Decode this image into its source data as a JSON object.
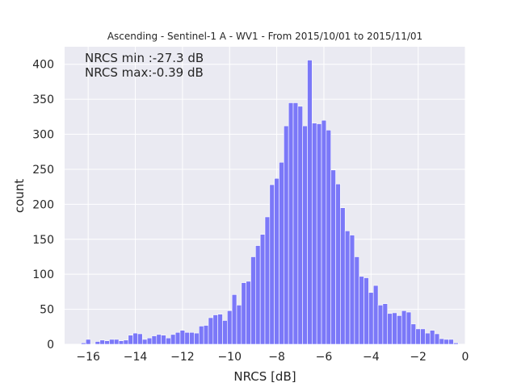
{
  "chart_data": {
    "type": "bar",
    "title": "Ascending - Sentinel-1 A - WV1 - From 2015/10/01 to 2015/11/01",
    "xlabel": "NRCS [dB]",
    "ylabel": "count",
    "xlim": [
      -17.0,
      0.0
    ],
    "ylim": [
      0,
      425
    ],
    "xticks": [
      -16,
      -14,
      -12,
      -10,
      -8,
      -6,
      -4,
      -2,
      0
    ],
    "xtick_labels": [
      "−16",
      "−14",
      "−12",
      "−10",
      "−8",
      "−6",
      "−4",
      "−2",
      "0"
    ],
    "yticks": [
      0,
      50,
      100,
      150,
      200,
      250,
      300,
      350,
      400
    ],
    "grid": true,
    "background_color": "#eaeaf2",
    "bar_color": "#7b78f8",
    "annotations": [
      "NRCS min :-27.3 dB",
      "NRCS max:-0.39 dB"
    ],
    "bin_width": 0.2,
    "bin_starts": [
      -16.3,
      -16.1,
      -15.9,
      -15.7,
      -15.5,
      -15.3,
      -15.1,
      -14.9,
      -14.7,
      -14.5,
      -14.3,
      -14.1,
      -13.9,
      -13.7,
      -13.5,
      -13.3,
      -13.1,
      -12.9,
      -12.7,
      -12.5,
      -12.3,
      -12.1,
      -11.9,
      -11.7,
      -11.5,
      -11.3,
      -11.1,
      -10.9,
      -10.7,
      -10.5,
      -10.3,
      -10.1,
      -9.9,
      -9.7,
      -9.5,
      -9.3,
      -9.1,
      -8.9,
      -8.7,
      -8.5,
      -8.3,
      -8.1,
      -7.9,
      -7.7,
      -7.5,
      -7.3,
      -7.1,
      -6.9,
      -6.7,
      -6.5,
      -6.3,
      -6.1,
      -5.9,
      -5.7,
      -5.5,
      -5.3,
      -5.1,
      -4.9,
      -4.7,
      -4.5,
      -4.3,
      -4.1,
      -3.9,
      -3.7,
      -3.5,
      -3.3,
      -3.1,
      -2.9,
      -2.7,
      -2.5,
      -2.3,
      -2.1,
      -1.9,
      -1.7,
      -1.5,
      -1.3,
      -1.1,
      -0.9,
      -0.7,
      -0.5
    ],
    "values": [
      2,
      7,
      0,
      4,
      6,
      5,
      7,
      7,
      5,
      6,
      13,
      16,
      15,
      7,
      9,
      12,
      14,
      13,
      9,
      14,
      17,
      20,
      17,
      17,
      16,
      26,
      27,
      38,
      42,
      43,
      34,
      48,
      71,
      56,
      88,
      90,
      125,
      141,
      157,
      182,
      228,
      237,
      260,
      312,
      345,
      345,
      340,
      312,
      406,
      316,
      315,
      320,
      306,
      249,
      229,
      195,
      162,
      156,
      125,
      97,
      95,
      74,
      84,
      56,
      58,
      44,
      45,
      41,
      48,
      46,
      29,
      22,
      22,
      16,
      20,
      15,
      8,
      7,
      7,
      2
    ]
  }
}
